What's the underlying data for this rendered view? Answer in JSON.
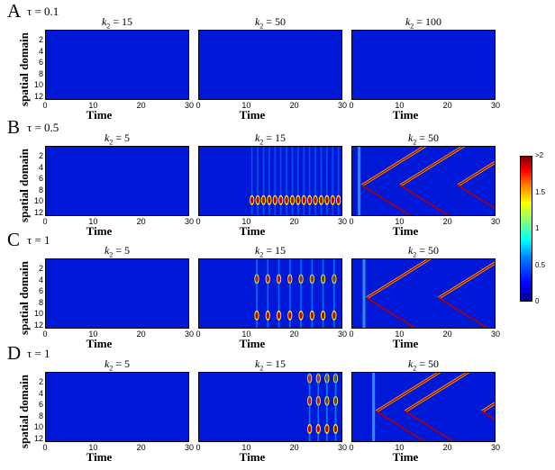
{
  "rows": [
    {
      "label": "A",
      "tau": "τ = 0.1",
      "titles": [
        {
          "pre": "k",
          "sub": "2",
          "post": " = 15"
        },
        {
          "pre": "k",
          "sub": "2",
          "post": " = 50"
        },
        {
          "pre": "k",
          "sub": "2",
          "post": " = 100"
        }
      ]
    },
    {
      "label": "B",
      "tau": "τ = 0.5",
      "titles": [
        {
          "pre": "k",
          "sub": "2",
          "post": " = 5"
        },
        {
          "pre": "k",
          "sub": "2",
          "post": " = 15"
        },
        {
          "pre": "k",
          "sub": "2",
          "post": " = 50"
        }
      ]
    },
    {
      "label": "C",
      "tau": "τ = 1",
      "titles": [
        {
          "pre": "k",
          "sub": "2",
          "post": " = 5"
        },
        {
          "pre": "k",
          "sub": "2",
          "post": " = 15"
        },
        {
          "pre": "k",
          "sub": "2",
          "post": " = 50"
        }
      ]
    },
    {
      "label": "D",
      "tau": "τ = 1",
      "titles": [
        {
          "pre": "k",
          "sub": "2",
          "post": " = 5"
        },
        {
          "pre": "k",
          "sub": "2",
          "post": " = 15"
        },
        {
          "pre": "k",
          "sub": "2",
          "post": " = 50"
        }
      ]
    }
  ],
  "ylabel": "spatial domain",
  "xlabel": "Time",
  "xticks": [
    "0",
    "10",
    "20",
    "30"
  ],
  "yticks": [
    "2",
    "4",
    "6",
    "8",
    "10",
    "12"
  ],
  "colorbar": {
    "ticks": [
      "0",
      "0.5",
      "1",
      "1.5",
      ">2"
    ],
    "values": [
      0,
      0.5,
      1,
      1.5,
      2
    ]
  },
  "colors": {
    "background": "#0018d8",
    "high": "#a00000",
    "mid": "#ffff00",
    "low": "#00c0ff"
  },
  "chart_data": {
    "type": "heatmap",
    "xlim": [
      0,
      30
    ],
    "ylim": [
      0,
      12.5
    ],
    "clim": [
      0,
      2
    ],
    "panels": [
      {
        "row": "A",
        "k2": 15,
        "pattern": "uniform"
      },
      {
        "row": "A",
        "k2": 50,
        "pattern": "uniform"
      },
      {
        "row": "A",
        "k2": 100,
        "pattern": "uniform"
      },
      {
        "row": "B",
        "k2": 5,
        "pattern": "uniform"
      },
      {
        "row": "B",
        "k2": 15,
        "pattern": "periodic spots",
        "spot_y": 9.5,
        "spot_start_time": 11,
        "spot_spacing": 1.2
      },
      {
        "row": "B",
        "k2": 50,
        "pattern": "travelling waves",
        "wave_start_times": [
          2,
          10,
          22
        ]
      },
      {
        "row": "C",
        "k2": 5,
        "pattern": "uniform"
      },
      {
        "row": "C",
        "k2": 15,
        "pattern": "periodic spots",
        "spot_y": [
          3.5,
          10
        ],
        "spot_start_time": 12,
        "spot_spacing": 2.3
      },
      {
        "row": "C",
        "k2": 50,
        "pattern": "travelling waves",
        "wave_start_times": [
          3,
          18
        ]
      },
      {
        "row": "D",
        "k2": 5,
        "pattern": "uniform"
      },
      {
        "row": "D",
        "k2": 15,
        "pattern": "periodic spots",
        "spot_y": [
          1,
          5,
          10
        ],
        "spot_start_time": 23,
        "spot_spacing": 1.8
      },
      {
        "row": "D",
        "k2": 50,
        "pattern": "travelling waves",
        "wave_start_times": [
          5,
          11,
          27
        ]
      }
    ]
  }
}
